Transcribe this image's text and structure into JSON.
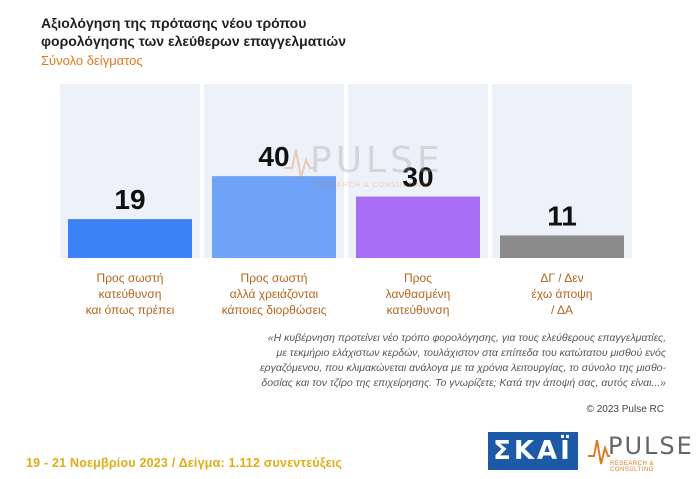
{
  "header": {
    "title": "Αξιολόγηση της πρότασης νέου τρόπου φορολόγησης των ελεύθερων επαγγελματιών",
    "subtitle": "Σύνολο δείγματος"
  },
  "chart_data": {
    "type": "bar",
    "categories": [
      "Προς σωστή κατεύθυνση και όπως πρέπει",
      "Προς σωστή αλλά χρειάζονται κάποιες διορθώσεις",
      "Προς λανθασμένη κατεύθυνση",
      "ΔΓ / Δεν έχω άποψη / ΔΑ"
    ],
    "category_lines": [
      [
        "Προς σωστή",
        "κατεύθυνση",
        "και όπως πρέπει"
      ],
      [
        "Προς σωστή",
        "αλλά χρειάζονται",
        "κάποιες διορθώσεις"
      ],
      [
        "Προς",
        "λανθασμένη",
        "κατεύθυνση"
      ],
      [
        "ΔΓ / Δεν",
        "έχω άποψη",
        "/ ΔΑ"
      ]
    ],
    "values": [
      19,
      40,
      30,
      11
    ],
    "colors": [
      "#3b82f6",
      "#6fa3f7",
      "#a76ef5",
      "#8c8c8c"
    ],
    "ylim": [
      0,
      85
    ],
    "grid": false,
    "legend": "none"
  },
  "quote": {
    "lines": [
      "«Η κυβέρνηση προτείνει νέο τρόπο φορολόγησης, για τους ελεύθερους επαγγελματίες,",
      "με τεκμήριο ελάχιστων κερδών, τουλάχιστον στα επίπεδα του κατώτατου μισθού ενός",
      "εργαζόμενου, που κλιμακώνεται ανάλογα με τα χρόνια λειτουργίας, το σύνολο της μισθο-",
      "δοσίας και τον τζίρο της επιχείρησης. Το γνωρίζετε; Κατά την άποψή σας, αυτός είναι...»"
    ]
  },
  "copyright": "© 2023 Pulse RC",
  "footer": "19 - 21 Νοεμβρίου 2023 / Δείγμα: 1.112 συνεντεύξεις",
  "logos": {
    "skai": "ΣΚΑΪ",
    "pulse": "PULSE",
    "pulse_sub": "RESEARCH & CONSULTING"
  }
}
